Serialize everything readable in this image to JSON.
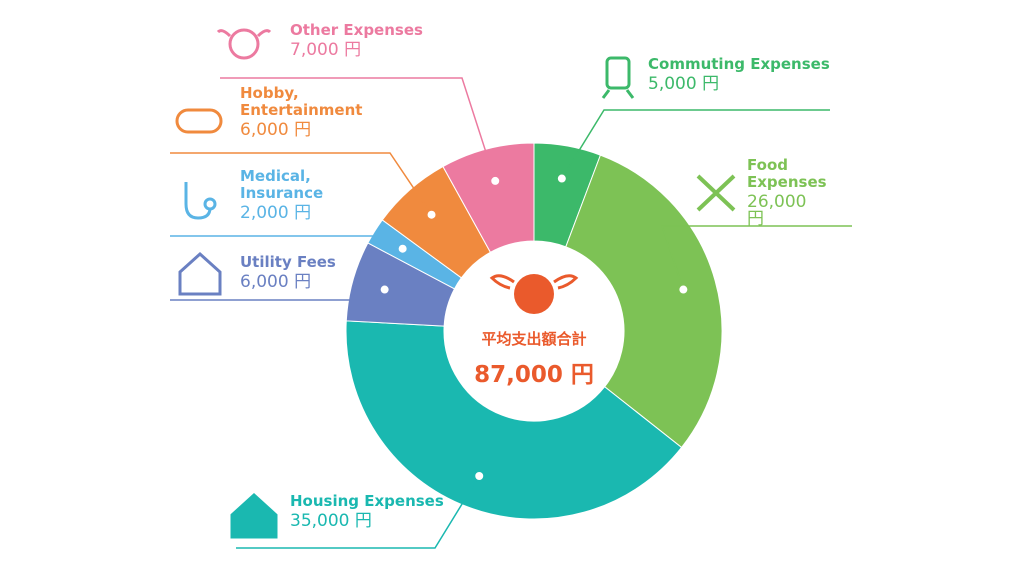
{
  "chart_data": {
    "type": "donut",
    "categories": [
      "Commuting Expenses",
      "Food Expenses",
      "Housing Expenses",
      "Utility Fees",
      "Medical, Insurance",
      "Hobby, Entertainment",
      "Other Expenses"
    ],
    "values": [
      5000,
      26000,
      35000,
      6000,
      2000,
      6000,
      7000
    ],
    "value_labels": [
      "5,000 円",
      "26,000 円",
      "35,000 円",
      "6,000 円",
      "2,000 円",
      "6,000 円",
      "7,000 円"
    ],
    "colors": [
      "#3cb96a",
      "#7dc255",
      "#1ab8b0",
      "#6a80c2",
      "#5ab4e5",
      "#f08a3e",
      "#ec7aa0"
    ],
    "center_title": "平均支出額合計",
    "total": 87000,
    "total_label": "87,000 円"
  }
}
